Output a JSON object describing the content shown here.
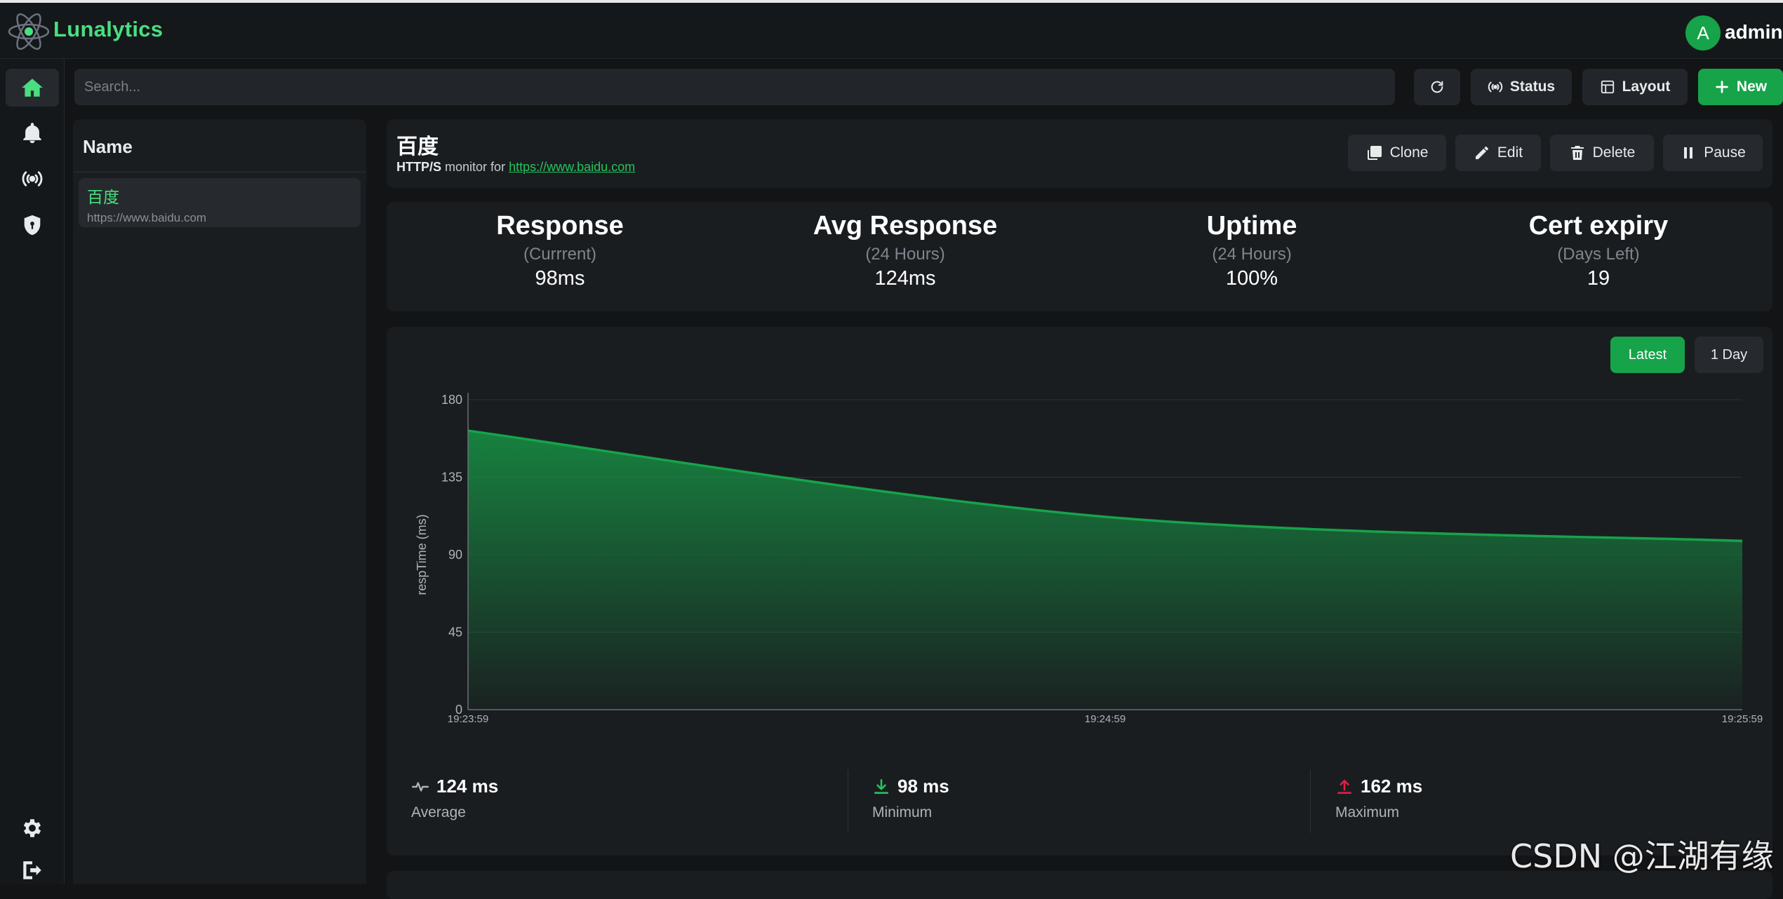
{
  "app": {
    "brand": "Lunalytics",
    "user_initial": "A",
    "user_name": "admin",
    "accent": "#16a34a"
  },
  "nav": {
    "items": [
      {
        "icon": "home-icon",
        "active": true
      },
      {
        "icon": "bell-icon"
      },
      {
        "icon": "broadcast-icon"
      },
      {
        "icon": "shield-icon"
      },
      {
        "icon": "gear-icon"
      },
      {
        "icon": "logout-icon"
      }
    ]
  },
  "toolbar": {
    "search_placeholder": "Search...",
    "status_label": "Status",
    "layout_label": "Layout",
    "new_label": "New"
  },
  "list": {
    "header": "Name",
    "items": [
      {
        "name": "百度",
        "url": "https://www.baidu.com"
      }
    ]
  },
  "monitor": {
    "name": "百度",
    "type": "HTTP/S",
    "monitor_for": "monitor for",
    "url": "https://www.baidu.com",
    "actions": {
      "clone": "Clone",
      "edit": "Edit",
      "delete": "Delete",
      "pause": "Pause"
    }
  },
  "stats": [
    {
      "title": "Response",
      "sub": "(Currrent)",
      "value": "98ms"
    },
    {
      "title": "Avg Response",
      "sub": "(24 Hours)",
      "value": "124ms"
    },
    {
      "title": "Uptime",
      "sub": "(24 Hours)",
      "value": "100%"
    },
    {
      "title": "Cert expiry",
      "sub": "(Days Left)",
      "value": "19"
    }
  ],
  "range": {
    "latest": "Latest",
    "day": "1 Day",
    "selected": "Latest"
  },
  "chart_data": {
    "type": "area",
    "ylabel": "respTime (ms)",
    "xlabel": "",
    "ylim": [
      0,
      180
    ],
    "yticks": [
      0,
      45,
      90,
      135,
      180
    ],
    "x": [
      "19:23:59",
      "19:24:59",
      "19:25:59"
    ],
    "series": [
      {
        "values": [
          162,
          112,
          98
        ]
      }
    ],
    "grid": true,
    "color": "#16a34a"
  },
  "summary": {
    "average_value": "124 ms",
    "average_label": "Average",
    "minimum_value": "98 ms",
    "minimum_label": "Minimum",
    "maximum_value": "162 ms",
    "maximum_label": "Maximum"
  },
  "watermark": "CSDN @江湖有缘"
}
